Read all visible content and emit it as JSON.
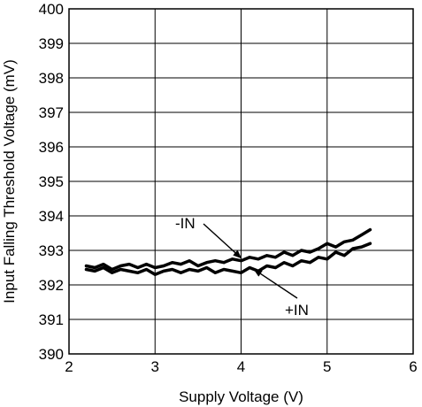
{
  "chart_data": {
    "type": "line",
    "title": "",
    "xlabel": "Supply Voltage (V)",
    "ylabel": "Input Falling Threshold Voltage (mV)",
    "xlim": [
      2,
      6
    ],
    "ylim": [
      390,
      400
    ],
    "x_ticks": [
      "2",
      "3",
      "4",
      "5",
      "6"
    ],
    "y_ticks": [
      "390",
      "391",
      "392",
      "393",
      "394",
      "395",
      "396",
      "397",
      "398",
      "399",
      "400"
    ],
    "grid": true,
    "series": [
      {
        "name": "-IN",
        "x": [
          2.2,
          2.3,
          2.4,
          2.5,
          2.6,
          2.7,
          2.8,
          2.9,
          3.0,
          3.1,
          3.2,
          3.3,
          3.4,
          3.5,
          3.6,
          3.7,
          3.8,
          3.9,
          4.0,
          4.1,
          4.2,
          4.3,
          4.4,
          4.5,
          4.6,
          4.7,
          4.8,
          4.9,
          5.0,
          5.1,
          5.2,
          5.3,
          5.4,
          5.5
        ],
        "y": [
          392.55,
          392.5,
          392.6,
          392.45,
          392.55,
          392.6,
          392.5,
          392.6,
          392.5,
          392.55,
          392.65,
          392.6,
          392.7,
          392.55,
          392.65,
          392.7,
          392.65,
          392.75,
          392.7,
          392.8,
          392.75,
          392.85,
          392.8,
          392.95,
          392.85,
          393.0,
          392.95,
          393.05,
          393.2,
          393.1,
          393.25,
          393.3,
          393.45,
          393.6
        ]
      },
      {
        "name": "+IN",
        "x": [
          2.2,
          2.3,
          2.4,
          2.5,
          2.6,
          2.7,
          2.8,
          2.9,
          3.0,
          3.1,
          3.2,
          3.3,
          3.4,
          3.5,
          3.6,
          3.7,
          3.8,
          3.9,
          4.0,
          4.1,
          4.2,
          4.3,
          4.4,
          4.5,
          4.6,
          4.7,
          4.8,
          4.9,
          5.0,
          5.1,
          5.2,
          5.3,
          5.4,
          5.5
        ],
        "y": [
          392.45,
          392.4,
          392.5,
          392.35,
          392.45,
          392.4,
          392.35,
          392.45,
          392.3,
          392.4,
          392.45,
          392.35,
          392.45,
          392.4,
          392.5,
          392.35,
          392.45,
          392.4,
          392.35,
          392.5,
          392.4,
          392.55,
          392.5,
          392.65,
          392.55,
          392.7,
          392.65,
          392.8,
          392.75,
          392.95,
          392.85,
          393.05,
          393.1,
          393.2
        ]
      }
    ],
    "annotations": [
      {
        "text": "-IN",
        "series": "-IN",
        "arrow_to_x": 4.0,
        "arrow_to_y": 392.78
      },
      {
        "text": "+IN",
        "series": "+IN",
        "arrow_to_x": 4.15,
        "arrow_to_y": 392.45
      }
    ],
    "colors": {
      "line": "#000000",
      "grid": "#000000"
    }
  }
}
